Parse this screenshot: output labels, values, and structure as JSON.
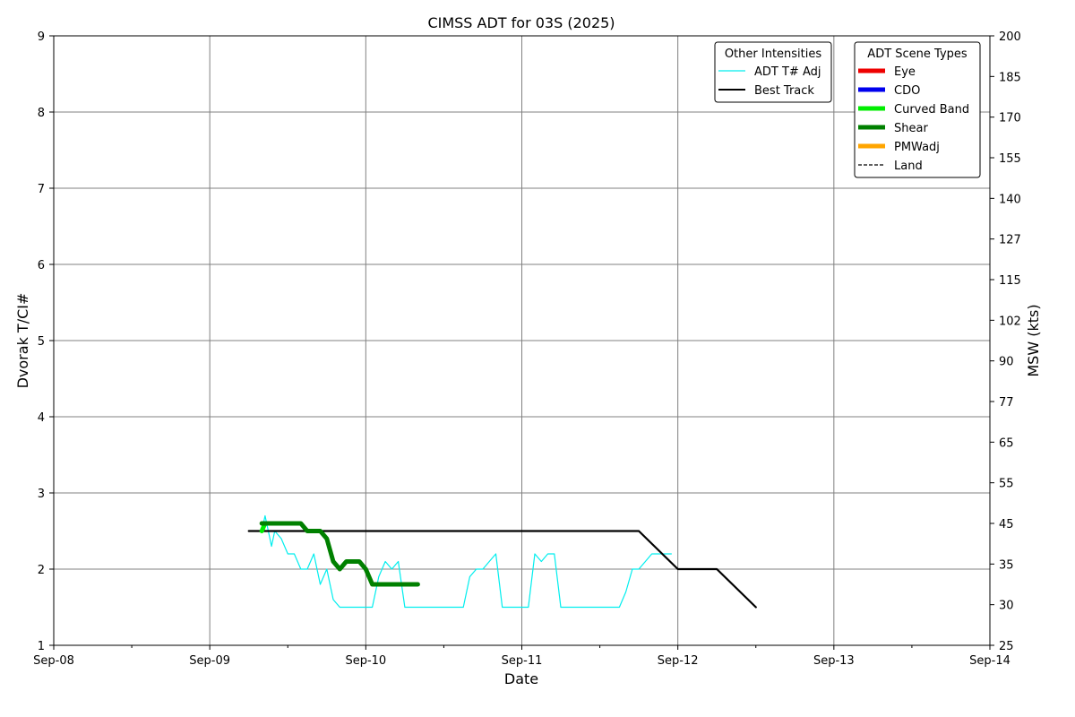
{
  "chart_data": {
    "type": "line",
    "title": "CIMSS ADT for 03S (2025)",
    "xlabel": "Date",
    "ylabel": "Dvorak T/CI#",
    "y2label": "MSW (kts)",
    "x_ticks": [
      "Sep-08",
      "Sep-09",
      "Sep-10",
      "Sep-11",
      "Sep-12",
      "Sep-13",
      "Sep-14"
    ],
    "xlim": [
      "2025-09-08T00:00",
      "2025-09-14T00:00"
    ],
    "ylim": [
      1,
      9
    ],
    "y_ticks": [
      "1",
      "2",
      "3",
      "4",
      "5",
      "6",
      "7",
      "8",
      "9"
    ],
    "y2_ticks": [
      "25",
      "30",
      "35",
      "45",
      "55",
      "65",
      "77",
      "90",
      "102",
      "115",
      "127",
      "140",
      "155",
      "170",
      "185",
      "200"
    ],
    "grid": true,
    "legends": [
      {
        "title": "Other Intensities",
        "placement": "top-right",
        "entries": [
          {
            "label": "ADT T# Adj",
            "color": "#00eeee",
            "style": "thin"
          },
          {
            "label": "Best Track",
            "color": "#000000",
            "style": "solid"
          }
        ]
      },
      {
        "title": "ADT Scene Types",
        "placement": "top-right",
        "entries": [
          {
            "label": "Eye",
            "color": "#ee0000",
            "style": "thick"
          },
          {
            "label": "CDO",
            "color": "#0000ee",
            "style": "thick"
          },
          {
            "label": "Curved Band",
            "color": "#00ee00",
            "style": "thick"
          },
          {
            "label": "Shear",
            "color": "#008000",
            "style": "thick"
          },
          {
            "label": "PMWadj",
            "color": "#ffa500",
            "style": "thick"
          },
          {
            "label": "Land",
            "color": "#000000",
            "style": "dashed"
          }
        ]
      }
    ],
    "series": [
      {
        "name": "Best Track",
        "color": "#000000",
        "points": [
          [
            "2025-09-09T06:00",
            2.5
          ],
          [
            "2025-09-11T18:00",
            2.5
          ],
          [
            "2025-09-12T00:00",
            2.0
          ],
          [
            "2025-09-12T06:00",
            2.0
          ],
          [
            "2025-09-12T12:00",
            1.5
          ]
        ]
      },
      {
        "name": "ADT T# Adj",
        "color": "#00eeee",
        "points": [
          [
            "2025-09-09T08:00",
            2.5
          ],
          [
            "2025-09-09T08:30",
            2.7
          ],
          [
            "2025-09-09T09:00",
            2.5
          ],
          [
            "2025-09-09T09:30",
            2.3
          ],
          [
            "2025-09-09T10:00",
            2.5
          ],
          [
            "2025-09-09T11:00",
            2.4
          ],
          [
            "2025-09-09T12:00",
            2.2
          ],
          [
            "2025-09-09T13:00",
            2.2
          ],
          [
            "2025-09-09T14:00",
            2.0
          ],
          [
            "2025-09-09T15:00",
            2.0
          ],
          [
            "2025-09-09T16:00",
            2.2
          ],
          [
            "2025-09-09T17:00",
            1.8
          ],
          [
            "2025-09-09T18:00",
            2.0
          ],
          [
            "2025-09-09T19:00",
            1.6
          ],
          [
            "2025-09-09T20:00",
            1.5
          ],
          [
            "2025-09-09T23:00",
            1.5
          ],
          [
            "2025-09-10T01:00",
            1.5
          ],
          [
            "2025-09-10T02:00",
            1.9
          ],
          [
            "2025-09-10T03:00",
            2.1
          ],
          [
            "2025-09-10T04:00",
            2.0
          ],
          [
            "2025-09-10T05:00",
            2.1
          ],
          [
            "2025-09-10T06:00",
            1.5
          ],
          [
            "2025-09-10T10:00",
            1.5
          ],
          [
            "2025-09-10T14:00",
            1.5
          ],
          [
            "2025-09-10T15:00",
            1.5
          ],
          [
            "2025-09-10T16:00",
            1.9
          ],
          [
            "2025-09-10T17:00",
            2.0
          ],
          [
            "2025-09-10T18:00",
            2.0
          ],
          [
            "2025-09-10T19:00",
            2.1
          ],
          [
            "2025-09-10T20:00",
            2.2
          ],
          [
            "2025-09-10T21:00",
            1.5
          ],
          [
            "2025-09-10T23:00",
            1.5
          ],
          [
            "2025-09-11T01:00",
            1.5
          ],
          [
            "2025-09-11T02:00",
            2.2
          ],
          [
            "2025-09-11T03:00",
            2.1
          ],
          [
            "2025-09-11T04:00",
            2.2
          ],
          [
            "2025-09-11T05:00",
            2.2
          ],
          [
            "2025-09-11T06:00",
            1.5
          ],
          [
            "2025-09-11T11:00",
            1.5
          ],
          [
            "2025-09-11T15:00",
            1.5
          ],
          [
            "2025-09-11T16:00",
            1.7
          ],
          [
            "2025-09-11T17:00",
            2.0
          ],
          [
            "2025-09-11T18:00",
            2.0
          ],
          [
            "2025-09-11T19:00",
            2.1
          ],
          [
            "2025-09-11T20:00",
            2.2
          ],
          [
            "2025-09-11T23:00",
            2.2
          ]
        ]
      },
      {
        "name": "Shear",
        "color": "#008000",
        "points": [
          [
            "2025-09-09T08:00",
            2.6
          ],
          [
            "2025-09-09T14:00",
            2.6
          ],
          [
            "2025-09-09T15:00",
            2.5
          ],
          [
            "2025-09-09T17:00",
            2.5
          ],
          [
            "2025-09-09T18:00",
            2.4
          ],
          [
            "2025-09-09T19:00",
            2.1
          ],
          [
            "2025-09-09T20:00",
            2.0
          ],
          [
            "2025-09-09T21:00",
            2.1
          ],
          [
            "2025-09-09T23:00",
            2.1
          ],
          [
            "2025-09-10T00:00",
            2.0
          ],
          [
            "2025-09-10T01:00",
            1.8
          ],
          [
            "2025-09-10T08:00",
            1.8
          ]
        ]
      },
      {
        "name": "Curved Band",
        "color": "#00ee00",
        "points": [
          [
            "2025-09-09T08:00",
            2.5
          ],
          [
            "2025-09-09T08:30",
            2.6
          ]
        ]
      }
    ]
  }
}
